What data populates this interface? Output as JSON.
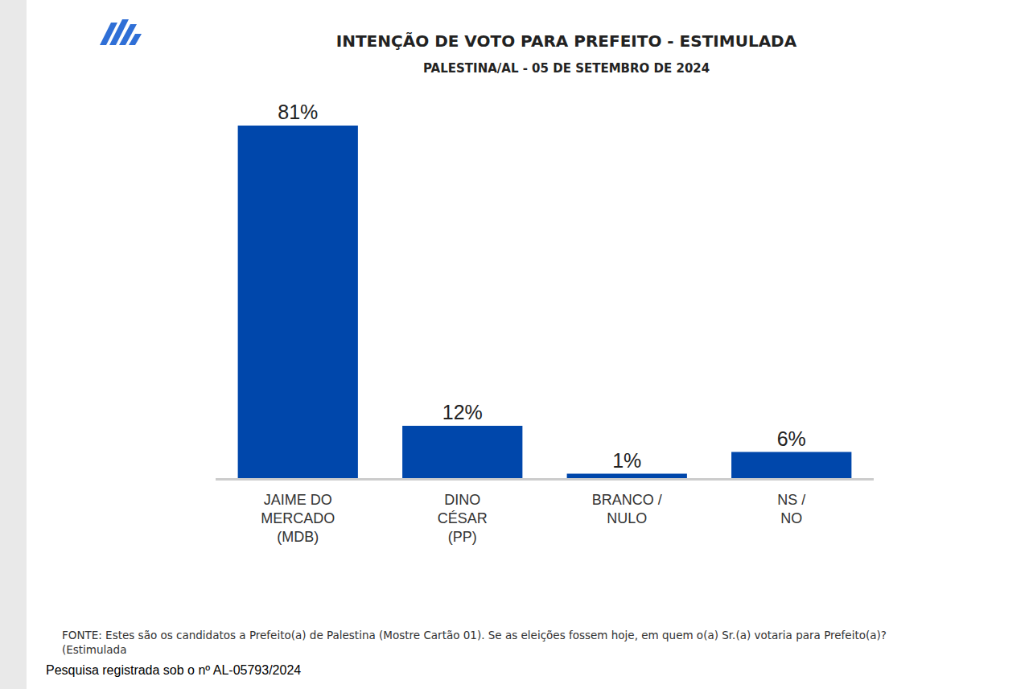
{
  "chart_data": {
    "type": "bar",
    "title": "INTENÇÃO DE VOTO PARA PREFEITO - ESTIMULADA",
    "subtitle": "PALESTINA/AL - 05 DE SETEMBRO DE 2024",
    "categories": [
      "JAIME DO\nMERCADO\n(MDB)",
      "DINO\nCÉSAR\n(PP)",
      "BRANCO /\nNULO",
      "NS /\nNO"
    ],
    "values": [
      81,
      12,
      1,
      6
    ],
    "value_labels": [
      "81%",
      "12%",
      "1%",
      "6%"
    ],
    "data_labels": true,
    "color": "#0047ab",
    "ylim": [
      0,
      81
    ],
    "tick_labels": "x",
    "grid": false,
    "annotations": [
      "FONTE: Estes são os candidatos a Prefeito(a) de Palestina (Mostre Cartão 01). Se as eleições fossem hoje, em quem o(a) Sr.(a) votaria para Prefeito(a)?\n(Estimulada",
      "Pesquisa registrada sob o nº AL-05793/2024"
    ]
  }
}
